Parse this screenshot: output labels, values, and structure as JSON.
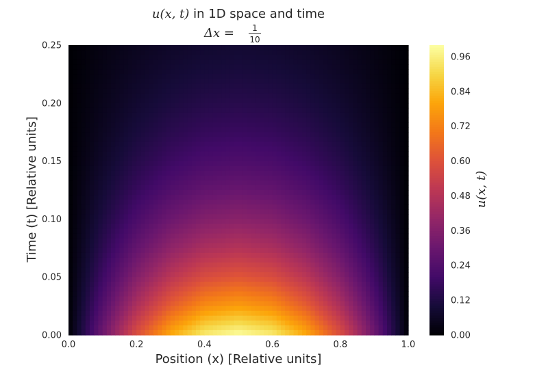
{
  "chart_data": {
    "type": "heatmap",
    "title_line1_math": "u(x, t)",
    "title_line1_text": " in 1D space and time",
    "title_line2_prefix": "Δx = ",
    "title_line2_frac_num": "1",
    "title_line2_frac_den": "10",
    "xlabel": "Position (x) [Relative units]",
    "ylabel": "Time (t) [Relative units]",
    "colorbar_label": "u(x, t)",
    "xlim": [
      0.0,
      1.0
    ],
    "ylim": [
      0.0,
      0.25
    ],
    "x_ticks": [
      "0.0",
      "0.2",
      "0.4",
      "0.6",
      "0.8",
      "1.0"
    ],
    "y_ticks": [
      "0.00",
      "0.05",
      "0.10",
      "0.15",
      "0.20",
      "0.25"
    ],
    "colorbar_range": [
      0.0,
      1.0
    ],
    "colorbar_ticks": [
      "0.00",
      "0.12",
      "0.24",
      "0.36",
      "0.48",
      "0.60",
      "0.72",
      "0.84",
      "0.96"
    ],
    "colormap": "inferno",
    "dx": 0.1,
    "x": [
      0.0,
      0.1,
      0.2,
      0.3,
      0.4,
      0.5,
      0.6,
      0.7,
      0.8,
      0.9,
      1.0
    ],
    "t": [
      0.0,
      0.025,
      0.05,
      0.075,
      0.1,
      0.125,
      0.15,
      0.175,
      0.2,
      0.225,
      0.25
    ],
    "u": [
      [
        0.0,
        0.309,
        0.588,
        0.809,
        0.951,
        1.0,
        0.951,
        0.809,
        0.588,
        0.309,
        0.0
      ],
      [
        0.0,
        0.242,
        0.46,
        0.633,
        0.744,
        0.782,
        0.744,
        0.633,
        0.46,
        0.242,
        0.0
      ],
      [
        0.0,
        0.189,
        0.36,
        0.495,
        0.582,
        0.612,
        0.582,
        0.495,
        0.36,
        0.189,
        0.0
      ],
      [
        0.0,
        0.148,
        0.281,
        0.387,
        0.455,
        0.478,
        0.455,
        0.387,
        0.281,
        0.148,
        0.0
      ],
      [
        0.0,
        0.116,
        0.22,
        0.303,
        0.356,
        0.374,
        0.356,
        0.303,
        0.22,
        0.116,
        0.0
      ],
      [
        0.0,
        0.091,
        0.172,
        0.237,
        0.279,
        0.293,
        0.279,
        0.237,
        0.172,
        0.091,
        0.0
      ],
      [
        0.0,
        0.071,
        0.135,
        0.185,
        0.218,
        0.229,
        0.218,
        0.185,
        0.135,
        0.071,
        0.0
      ],
      [
        0.0,
        0.055,
        0.105,
        0.145,
        0.17,
        0.179,
        0.17,
        0.145,
        0.105,
        0.055,
        0.0
      ],
      [
        0.0,
        0.043,
        0.082,
        0.113,
        0.133,
        0.14,
        0.133,
        0.113,
        0.082,
        0.043,
        0.0
      ],
      [
        0.0,
        0.034,
        0.064,
        0.089,
        0.104,
        0.11,
        0.104,
        0.089,
        0.064,
        0.034,
        0.0
      ],
      [
        0.0,
        0.027,
        0.05,
        0.069,
        0.081,
        0.086,
        0.081,
        0.069,
        0.05,
        0.027,
        0.0
      ]
    ],
    "grid": false
  }
}
